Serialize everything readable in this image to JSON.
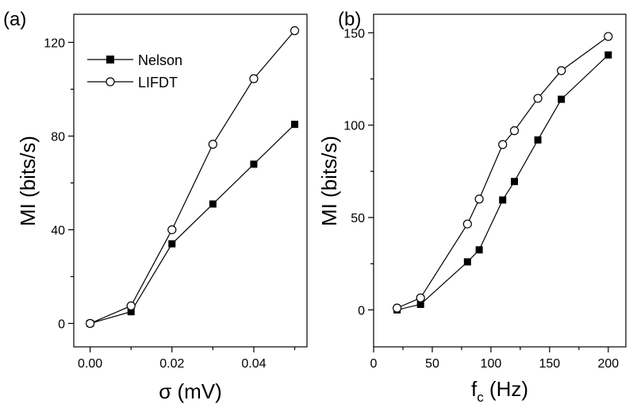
{
  "chart_data": [
    {
      "type": "line",
      "panel_label": "(a)",
      "xlabel": "σ (mV)",
      "ylabel": "MI (bits/s)",
      "xlim": [
        -0.004,
        0.053
      ],
      "ylim": [
        -10,
        132
      ],
      "xticks": [
        0.0,
        0.02,
        0.04
      ],
      "xtick_labels": [
        "0.00",
        "0.02",
        "0.04"
      ],
      "xminor_ticks": [
        0.01,
        0.03,
        0.05
      ],
      "yticks": [
        0,
        40,
        80,
        120
      ],
      "ytick_labels": [
        "0",
        "40",
        "80",
        "120"
      ],
      "yminor_ticks": [
        20,
        60,
        100
      ],
      "legend": "top-left",
      "series": [
        {
          "name": "Nelson",
          "marker": "filled-square",
          "x": [
            0.0,
            0.01,
            0.02,
            0.03,
            0.04,
            0.05
          ],
          "y": [
            0,
            5,
            34,
            51,
            68,
            85
          ]
        },
        {
          "name": "LIFDT",
          "marker": "open-circle",
          "x": [
            0.0,
            0.01,
            0.02,
            0.03,
            0.04,
            0.05
          ],
          "y": [
            0,
            7.5,
            40,
            76.5,
            104.5,
            125
          ]
        }
      ]
    },
    {
      "type": "line",
      "panel_label": "(b)",
      "xlabel": "fc (Hz)",
      "xlabel_main": "f",
      "xlabel_sub": "c",
      "xlabel_unit": " (Hz)",
      "ylabel": "MI (bits/s)",
      "xlim": [
        0,
        215
      ],
      "ylim": [
        -20,
        160
      ],
      "xticks": [
        0,
        50,
        100,
        150,
        200
      ],
      "xtick_labels": [
        "0",
        "50",
        "100",
        "150",
        "200"
      ],
      "xminor_ticks": [
        25,
        75,
        125,
        175
      ],
      "yticks": [
        0,
        50,
        100,
        150
      ],
      "ytick_labels": [
        "0",
        "50",
        "100",
        "150"
      ],
      "yminor_ticks": [
        25,
        75,
        125
      ],
      "series": [
        {
          "name": "Nelson",
          "marker": "filled-square",
          "x": [
            20,
            40,
            80,
            90,
            110,
            120,
            140,
            160,
            200
          ],
          "y": [
            0,
            3,
            26,
            32.5,
            59.5,
            69.5,
            92,
            114,
            138
          ]
        },
        {
          "name": "LIFDT",
          "marker": "open-circle",
          "x": [
            20,
            40,
            80,
            90,
            110,
            120,
            140,
            160,
            200
          ],
          "y": [
            1,
            6.5,
            46.5,
            60,
            89.5,
            97,
            114.5,
            129.5,
            148
          ]
        }
      ]
    }
  ]
}
